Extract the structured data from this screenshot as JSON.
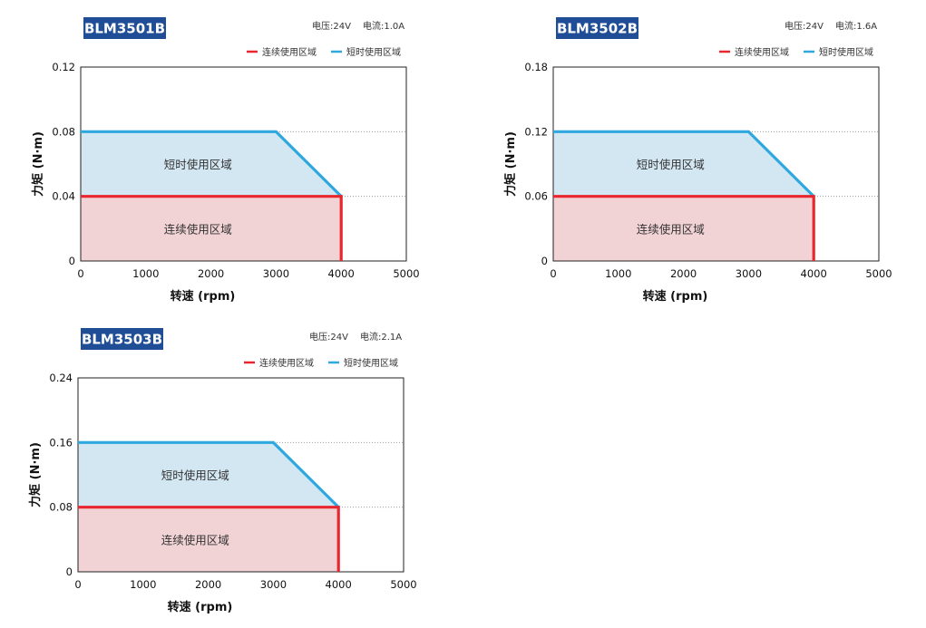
{
  "colors": {
    "continuous": "#e8262f",
    "short_term": "#2fa8e0",
    "continuous_fill": "#f2d3d5",
    "short_fill": "#d3e7f3",
    "title_bg": "#1f4e96",
    "grid": "#8a8a8a"
  },
  "chart_data": [
    {
      "type": "area",
      "title": "BLM3501B",
      "specs": {
        "voltage": "电压:24V",
        "current": "电流:1.0A"
      },
      "legend": [
        {
          "label": "连续使用区域",
          "color": "#e8262f"
        },
        {
          "label": "短时使用区域",
          "color": "#2fa8e0"
        }
      ],
      "legend_position": "top-right",
      "xlabel": "转速 (rpm)",
      "ylabel": "力矩 (N·m)",
      "xlim": [
        0,
        5000
      ],
      "ylim": [
        0,
        0.12
      ],
      "xticks": [
        0,
        1000,
        2000,
        3000,
        4000,
        5000
      ],
      "xtick_labels": [
        "0",
        "1000",
        "2000",
        "3000",
        "4000",
        "5000"
      ],
      "yticks": [
        0,
        0.04,
        0.08,
        0.12
      ],
      "ytick_labels": [
        "0",
        "0.04",
        "0.08",
        "0.12"
      ],
      "grid": "horizontal-dotted",
      "series": [
        {
          "name": "连续使用区域",
          "x": [
            0,
            4000,
            4000
          ],
          "y": [
            0.04,
            0.04,
            0
          ]
        },
        {
          "name": "短时使用区域",
          "x": [
            0,
            3000,
            4000
          ],
          "y": [
            0.08,
            0.08,
            0.04
          ]
        }
      ],
      "region_labels": {
        "short_term": "短时使用区域",
        "continuous": "连续使用区域"
      }
    },
    {
      "type": "area",
      "title": "BLM3502B",
      "specs": {
        "voltage": "电压:24V",
        "current": "电流:1.6A"
      },
      "legend": [
        {
          "label": "连续使用区域",
          "color": "#e8262f"
        },
        {
          "label": "短时使用区域",
          "color": "#2fa8e0"
        }
      ],
      "legend_position": "top-right",
      "xlabel": "转速 (rpm)",
      "ylabel": "力矩 (N·m)",
      "xlim": [
        0,
        5000
      ],
      "ylim": [
        0,
        0.18
      ],
      "xticks": [
        0,
        1000,
        2000,
        3000,
        4000,
        5000
      ],
      "xtick_labels": [
        "0",
        "1000",
        "2000",
        "3000",
        "4000",
        "5000"
      ],
      "yticks": [
        0,
        0.06,
        0.12,
        0.18
      ],
      "ytick_labels": [
        "0",
        "0.06",
        "0.12",
        "0.18"
      ],
      "grid": "horizontal-dotted",
      "series": [
        {
          "name": "连续使用区域",
          "x": [
            0,
            4000,
            4000
          ],
          "y": [
            0.06,
            0.06,
            0
          ]
        },
        {
          "name": "短时使用区域",
          "x": [
            0,
            3000,
            4000
          ],
          "y": [
            0.12,
            0.12,
            0.06
          ]
        }
      ],
      "region_labels": {
        "short_term": "短时使用区域",
        "continuous": "连续使用区域"
      }
    },
    {
      "type": "area",
      "title": "BLM3503B",
      "specs": {
        "voltage": "电压:24V",
        "current": "电流:2.1A"
      },
      "legend": [
        {
          "label": "连续使用区域",
          "color": "#e8262f"
        },
        {
          "label": "短时使用区域",
          "color": "#2fa8e0"
        }
      ],
      "legend_position": "top-right",
      "xlabel": "转速 (rpm)",
      "ylabel": "力矩 (N·m)",
      "xlim": [
        0,
        5000
      ],
      "ylim": [
        0,
        0.24
      ],
      "xticks": [
        0,
        1000,
        2000,
        3000,
        4000,
        5000
      ],
      "xtick_labels": [
        "0",
        "1000",
        "2000",
        "3000",
        "4000",
        "5000"
      ],
      "yticks": [
        0,
        0.08,
        0.16,
        0.24
      ],
      "ytick_labels": [
        "0",
        "0.08",
        "0.16",
        "0.24"
      ],
      "grid": "horizontal-dotted",
      "series": [
        {
          "name": "连续使用区域",
          "x": [
            0,
            4000,
            4000
          ],
          "y": [
            0.08,
            0.08,
            0
          ]
        },
        {
          "name": "短时使用区域",
          "x": [
            0,
            3000,
            4000
          ],
          "y": [
            0.16,
            0.16,
            0.08
          ]
        }
      ],
      "region_labels": {
        "short_term": "短时使用区域",
        "continuous": "连续使用区域"
      }
    }
  ]
}
